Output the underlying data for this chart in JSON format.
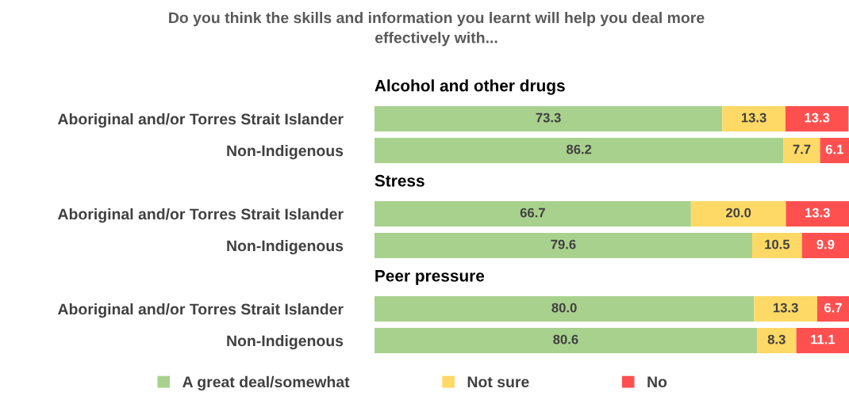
{
  "chart_data": {
    "type": "bar",
    "orientation": "horizontal",
    "stacked": true,
    "title": "Do you think the skills and information you learnt will help you deal more\neffectively with...",
    "categories": [
      "Aboriginal and/or Torres Strait Islander",
      "Non-Indigenous",
      "Aboriginal and/or Torres Strait Islander",
      "Non-Indigenous",
      "Aboriginal and/or Torres Strait Islander",
      "Non-Indigenous"
    ],
    "annotations": [
      "Alcohol and other drugs",
      "Stress",
      "Peer pressure"
    ],
    "series": [
      {
        "name": "A great deal/somewhat",
        "color": "#a9d18e",
        "values": [
          73.3,
          86.2,
          66.7,
          79.6,
          80,
          80.6
        ],
        "value_labels": [
          "73.3",
          "86.2",
          "66.7",
          "79.6",
          "80.0",
          "80.6"
        ]
      },
      {
        "name": "Not sure",
        "color": "#ffd966",
        "values": [
          13.3,
          7.7,
          20,
          10.5,
          13.3,
          8.3
        ],
        "value_labels": [
          "13.3",
          "7.7",
          "20.0",
          "10.5",
          "13.3",
          "8.3"
        ]
      },
      {
        "name": "No",
        "color": "#ff5050",
        "values": [
          13.3,
          6.1,
          13.3,
          9.9,
          6.7,
          11.1
        ],
        "value_labels": [
          "13.3",
          "6.1",
          "13.3",
          "9.9",
          "6.7",
          "11.1"
        ]
      }
    ],
    "xlim": [
      0,
      100
    ],
    "tick_labels": "y",
    "grid": false,
    "legend": "bottom"
  }
}
